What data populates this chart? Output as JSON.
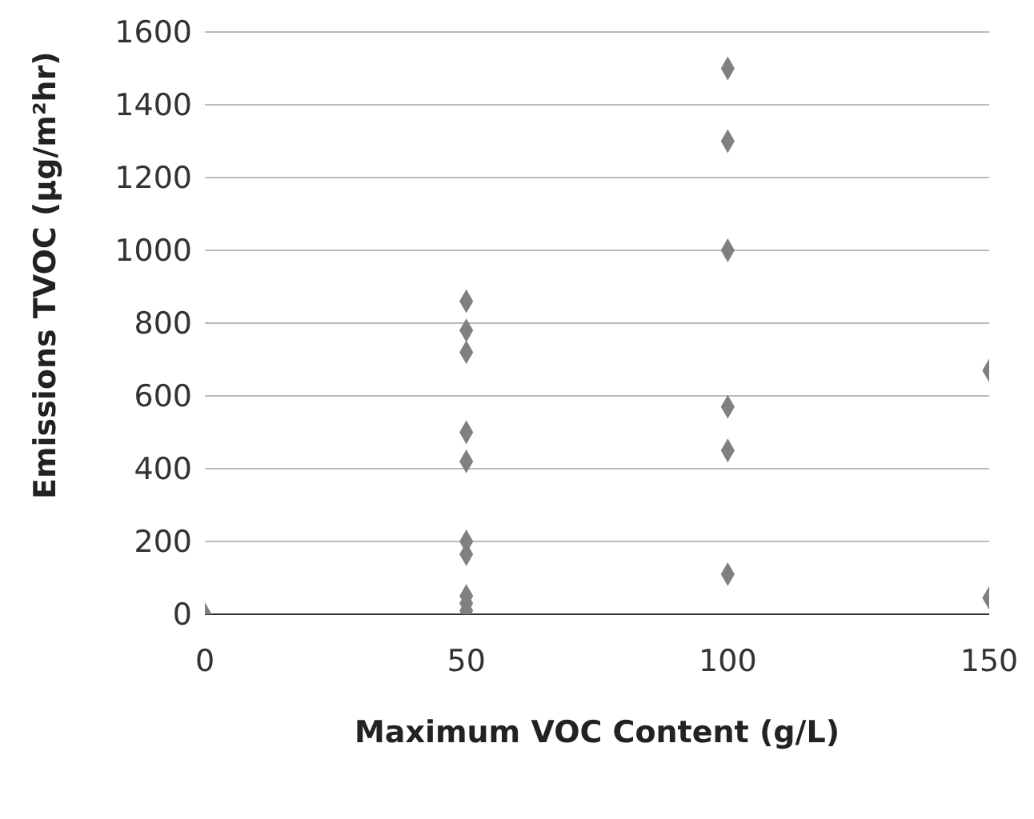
{
  "chart_data": {
    "type": "scatter",
    "xlabel": "Maximum VOC Content (g/L)",
    "ylabel": "Emissions TVOC (µg/m²hr)",
    "x": [
      0,
      50,
      50,
      50,
      50,
      50,
      50,
      50,
      50,
      50,
      50,
      100,
      100,
      100,
      100,
      100,
      100,
      150,
      150
    ],
    "series": [
      {
        "color": "#808080",
        "values": [
          0,
          860,
          780,
          720,
          500,
          420,
          200,
          165,
          50,
          30,
          10,
          1500,
          1300,
          1000,
          570,
          450,
          110,
          670,
          45
        ]
      }
    ],
    "xlim": [
      0,
      150
    ],
    "xticks": [
      0,
      50,
      100,
      150
    ],
    "ylim": [
      0,
      1600
    ],
    "yticks": [
      0,
      200,
      400,
      600,
      800,
      1000,
      1200,
      1400,
      1600
    ],
    "grid": "y",
    "marker": "diamond",
    "legend": false
  }
}
